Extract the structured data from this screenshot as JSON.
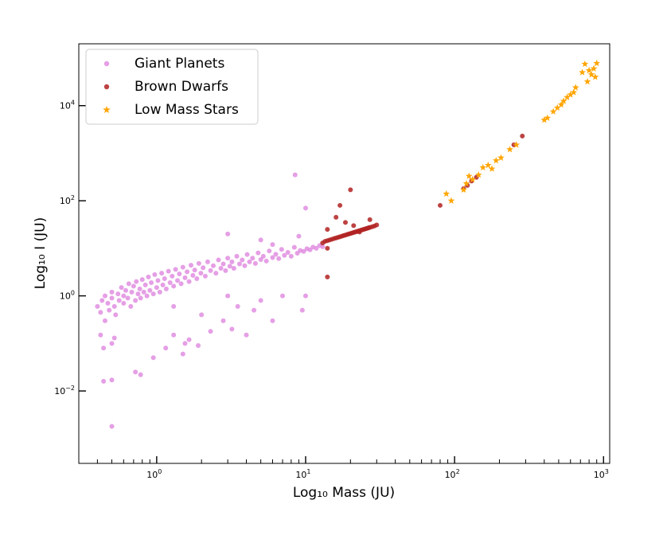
{
  "chart_data": {
    "type": "scatter",
    "xlabel": "Log₁₀ Mass (JU)",
    "ylabel": "Log₁₀ I (JU)",
    "xscale": "log",
    "yscale": "log",
    "xlim": [
      0.3,
      1100
    ],
    "ylim": [
      0.0003,
      200000
    ],
    "grid": false,
    "legend_position": "top-left",
    "x_ticks": [
      {
        "value": 1,
        "base": "10",
        "exp": "0"
      },
      {
        "value": 10,
        "base": "10",
        "exp": "1"
      },
      {
        "value": 100,
        "base": "10",
        "exp": "2"
      },
      {
        "value": 1000,
        "base": "10",
        "exp": "3"
      }
    ],
    "y_ticks": [
      {
        "value": 0.01,
        "base": "10",
        "exp": "−2"
      },
      {
        "value": 1,
        "base": "10",
        "exp": "0"
      },
      {
        "value": 100,
        "base": "10",
        "exp": "2"
      },
      {
        "value": 10000,
        "base": "10",
        "exp": "4"
      }
    ],
    "series": [
      {
        "name": "Giant Planets",
        "marker": "circle",
        "color": "#e08ee0",
        "points": [
          [
            0.4,
            0.6
          ],
          [
            0.42,
            0.45
          ],
          [
            0.43,
            0.8
          ],
          [
            0.45,
            0.3
          ],
          [
            0.45,
            1.0
          ],
          [
            0.47,
            0.7
          ],
          [
            0.48,
            0.5
          ],
          [
            0.5,
            0.9
          ],
          [
            0.5,
            1.2
          ],
          [
            0.52,
            0.6
          ],
          [
            0.53,
            0.4
          ],
          [
            0.55,
            1.1
          ],
          [
            0.56,
            0.8
          ],
          [
            0.58,
            1.5
          ],
          [
            0.6,
            0.7
          ],
          [
            0.6,
            1.0
          ],
          [
            0.62,
            1.3
          ],
          [
            0.64,
            0.9
          ],
          [
            0.65,
            1.8
          ],
          [
            0.67,
            0.6
          ],
          [
            0.68,
            1.2
          ],
          [
            0.7,
            1.6
          ],
          [
            0.72,
            0.8
          ],
          [
            0.73,
            2.0
          ],
          [
            0.75,
            1.1
          ],
          [
            0.77,
            1.4
          ],
          [
            0.78,
            0.9
          ],
          [
            0.8,
            2.2
          ],
          [
            0.82,
            1.2
          ],
          [
            0.84,
            1.7
          ],
          [
            0.86,
            1.0
          ],
          [
            0.88,
            2.5
          ],
          [
            0.9,
            1.3
          ],
          [
            0.92,
            1.9
          ],
          [
            0.95,
            1.1
          ],
          [
            0.97,
            2.8
          ],
          [
            1.0,
            1.5
          ],
          [
            1.02,
            2.1
          ],
          [
            1.05,
            1.2
          ],
          [
            1.08,
            3.0
          ],
          [
            1.1,
            1.7
          ],
          [
            1.13,
            2.3
          ],
          [
            1.16,
            1.4
          ],
          [
            1.2,
            3.3
          ],
          [
            1.23,
            1.9
          ],
          [
            1.27,
            2.6
          ],
          [
            1.3,
            1.6
          ],
          [
            1.34,
            3.6
          ],
          [
            1.38,
            2.1
          ],
          [
            1.42,
            2.9
          ],
          [
            1.46,
            1.8
          ],
          [
            1.5,
            4.0
          ],
          [
            1.55,
            2.4
          ],
          [
            1.6,
            3.2
          ],
          [
            1.65,
            2.0
          ],
          [
            1.7,
            4.4
          ],
          [
            1.75,
            2.7
          ],
          [
            1.8,
            3.5
          ],
          [
            1.86,
            2.3
          ],
          [
            1.92,
            4.8
          ],
          [
            1.98,
            3.0
          ],
          [
            2.05,
            3.9
          ],
          [
            2.12,
            2.6
          ],
          [
            2.2,
            5.2
          ],
          [
            2.3,
            3.4
          ],
          [
            2.4,
            4.3
          ],
          [
            2.5,
            3.0
          ],
          [
            2.6,
            5.7
          ],
          [
            2.7,
            3.8
          ],
          [
            2.8,
            4.7
          ],
          [
            2.9,
            3.4
          ],
          [
            3.0,
            6.2
          ],
          [
            3.1,
            4.2
          ],
          [
            3.2,
            5.2
          ],
          [
            3.3,
            3.8
          ],
          [
            3.45,
            6.8
          ],
          [
            3.6,
            4.7
          ],
          [
            3.75,
            5.7
          ],
          [
            3.9,
            4.3
          ],
          [
            4.05,
            7.4
          ],
          [
            4.2,
            5.2
          ],
          [
            4.4,
            6.2
          ],
          [
            4.6,
            4.8
          ],
          [
            4.8,
            8.0
          ],
          [
            5.0,
            5.8
          ],
          [
            5.2,
            6.8
          ],
          [
            5.45,
            5.4
          ],
          [
            5.7,
            8.8
          ],
          [
            6.0,
            6.4
          ],
          [
            6.3,
            7.5
          ],
          [
            6.6,
            6.1
          ],
          [
            6.9,
            9.5
          ],
          [
            7.2,
            7.1
          ],
          [
            7.6,
            8.2
          ],
          [
            8.0,
            6.8
          ],
          [
            8.4,
            10.5
          ],
          [
            8.8,
            7.9
          ],
          [
            9.2,
            9.0
          ],
          [
            9.7,
            8.6
          ],
          [
            10.2,
            9.8
          ],
          [
            10.7,
            9.3
          ],
          [
            11.2,
            10.6
          ],
          [
            11.8,
            10.0
          ],
          [
            12.4,
            11.4
          ],
          [
            13.0,
            10.8
          ],
          [
            0.42,
            0.15
          ],
          [
            0.44,
            0.08
          ],
          [
            0.5,
            0.1
          ],
          [
            0.52,
            0.13
          ],
          [
            0.44,
            0.016
          ],
          [
            0.5,
            0.017
          ],
          [
            0.5,
            0.0018
          ],
          [
            0.72,
            0.025
          ],
          [
            0.78,
            0.022
          ],
          [
            0.95,
            0.05
          ],
          [
            1.15,
            0.08
          ],
          [
            1.3,
            0.15
          ],
          [
            1.5,
            0.06
          ],
          [
            1.55,
            0.1
          ],
          [
            1.65,
            0.12
          ],
          [
            1.9,
            0.09
          ],
          [
            2.3,
            0.18
          ],
          [
            2.8,
            0.3
          ],
          [
            3.2,
            0.2
          ],
          [
            4.0,
            0.15
          ],
          [
            3.0,
            1.0
          ],
          [
            3.5,
            0.6
          ],
          [
            4.5,
            0.5
          ],
          [
            5.0,
            0.8
          ],
          [
            6.0,
            0.3
          ],
          [
            9.5,
            0.5
          ],
          [
            7.0,
            1.0
          ],
          [
            10.0,
            1.0
          ],
          [
            3.0,
            20
          ],
          [
            5.0,
            15
          ],
          [
            6.0,
            12
          ],
          [
            9.0,
            18
          ],
          [
            10.0,
            70
          ],
          [
            8.5,
            350
          ],
          [
            1.3,
            0.6
          ],
          [
            2.0,
            0.4
          ]
        ]
      },
      {
        "name": "Brown Dwarfs",
        "marker": "circle",
        "color": "#b22222",
        "points": [
          [
            13.0,
            13
          ],
          [
            13.5,
            14
          ],
          [
            14.0,
            14.5
          ],
          [
            14.5,
            15
          ],
          [
            15.0,
            15.5
          ],
          [
            15.5,
            16
          ],
          [
            16.0,
            16.5
          ],
          [
            16.5,
            17
          ],
          [
            17.0,
            17.5
          ],
          [
            17.5,
            18
          ],
          [
            18.0,
            18.5
          ],
          [
            18.5,
            19
          ],
          [
            19.0,
            19.5
          ],
          [
            19.5,
            20
          ],
          [
            20.0,
            20.5
          ],
          [
            20.5,
            21
          ],
          [
            21.0,
            21.5
          ],
          [
            21.5,
            22
          ],
          [
            22.0,
            22.5
          ],
          [
            22.5,
            23
          ],
          [
            23.0,
            23.5
          ],
          [
            23.5,
            24
          ],
          [
            24.0,
            24.5
          ],
          [
            24.5,
            25
          ],
          [
            25.0,
            25.5
          ],
          [
            25.5,
            26
          ],
          [
            26.0,
            26.5
          ],
          [
            26.5,
            27
          ],
          [
            27.0,
            27.5
          ],
          [
            28.0,
            28.5
          ],
          [
            29.0,
            29.5
          ],
          [
            30.0,
            31
          ],
          [
            14.0,
            25
          ],
          [
            16.0,
            45
          ],
          [
            17.0,
            80
          ],
          [
            20.0,
            170
          ],
          [
            18.5,
            35
          ],
          [
            21.0,
            30
          ],
          [
            23.0,
            22
          ],
          [
            27.0,
            40
          ],
          [
            14.0,
            2.5
          ],
          [
            14.0,
            10
          ],
          [
            80.0,
            80
          ],
          [
            115.0,
            180
          ],
          [
            122.0,
            210
          ],
          [
            130.0,
            260
          ],
          [
            140.0,
            310
          ],
          [
            250.0,
            1500
          ],
          [
            285.0,
            2300
          ]
        ]
      },
      {
        "name": "Low Mass Stars",
        "marker": "star",
        "color": "#ffa500",
        "points": [
          [
            88,
            140
          ],
          [
            95,
            100
          ],
          [
            115,
            170
          ],
          [
            120,
            230
          ],
          [
            125,
            330
          ],
          [
            132,
            280
          ],
          [
            145,
            350
          ],
          [
            155,
            500
          ],
          [
            168,
            560
          ],
          [
            178,
            470
          ],
          [
            190,
            700
          ],
          [
            205,
            800
          ],
          [
            235,
            1200
          ],
          [
            260,
            1500
          ],
          [
            400,
            5000
          ],
          [
            420,
            5500
          ],
          [
            460,
            7500
          ],
          [
            490,
            9000
          ],
          [
            520,
            10500
          ],
          [
            540,
            12500
          ],
          [
            570,
            15000
          ],
          [
            600,
            17000
          ],
          [
            630,
            19000
          ],
          [
            650,
            24000
          ],
          [
            720,
            50000
          ],
          [
            750,
            75000
          ],
          [
            780,
            32000
          ],
          [
            800,
            55000
          ],
          [
            830,
            45000
          ],
          [
            860,
            60000
          ],
          [
            900,
            78000
          ],
          [
            880,
            40000
          ]
        ]
      }
    ]
  }
}
